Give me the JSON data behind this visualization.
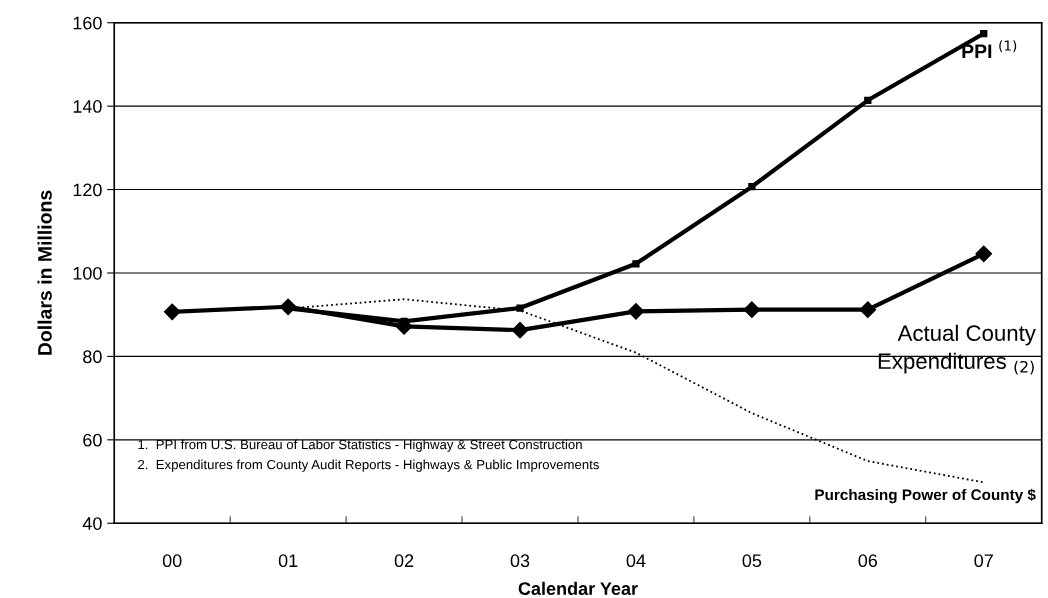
{
  "chart_data": {
    "type": "line",
    "xlabel": "Calendar Year",
    "ylabel": "Dollars in Millions",
    "categories": [
      "00",
      "01",
      "02",
      "03",
      "04",
      "05",
      "06",
      "07"
    ],
    "series": [
      {
        "name": "PPI $^{(1)}$",
        "color": "#000000",
        "marker": "square",
        "line_style": "solid",
        "values": [
          null,
          91.5,
          88.4,
          91.6,
          102.2,
          120.7,
          141.4,
          157.4
        ]
      },
      {
        "name": "Actual County\nExpenditures $_{(2)}$",
        "color": "#000000",
        "marker": "diamond",
        "line_style": "solid",
        "values": [
          90.7,
          91.9,
          87.2,
          86.3,
          90.8,
          91.2,
          91.2,
          104.6
        ]
      },
      {
        "name": "Purchasing Power of County $",
        "color": "#000000",
        "marker": "none",
        "line_style": "dotted",
        "values": [
          null,
          91.5,
          93.7,
          91.0,
          80.9,
          66.4,
          54.9,
          49.8
        ]
      }
    ],
    "ylim": [
      40,
      160
    ],
    "yticks": [
      40,
      60,
      80,
      100,
      120,
      140,
      160
    ],
    "grid": "y",
    "legend": false,
    "annotations": [
      "1.  PPI from U.S. Bureau of Labor Statistics - Highway & Street Construction",
      "2.  Expenditures from County Audit Reports - Highways & Public Improvements"
    ]
  }
}
